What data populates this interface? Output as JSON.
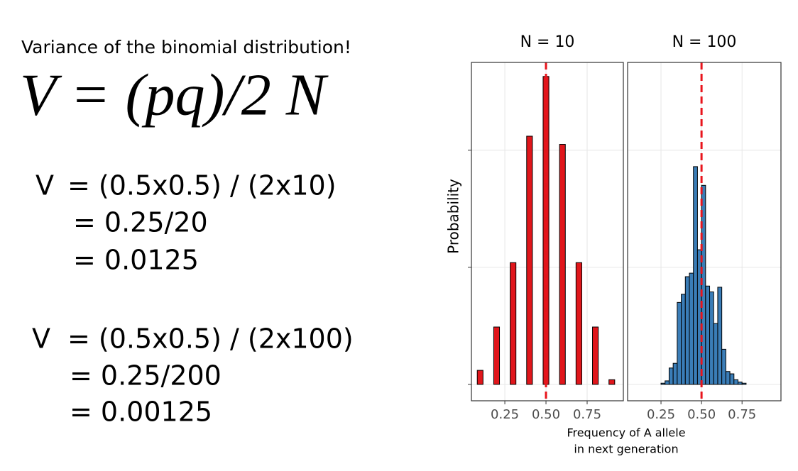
{
  "text": {
    "heading": "Variance of the binomial distribution!",
    "formula": "V = (pq)/2 N",
    "examples": [
      {
        "label": "V",
        "lines": [
          "= (0.5x0.5) / (2x10)",
          "= 0.25/20",
          "= 0.0125"
        ]
      },
      {
        "label": "V",
        "lines": [
          "= (0.5x0.5) / (2x100)",
          "= 0.25/200",
          "= 0.00125"
        ]
      }
    ]
  },
  "axes": {
    "y_label": "Probability",
    "x_label": [
      "Frequency of A allele",
      "in next generation"
    ]
  },
  "chart_data": [
    {
      "type": "bar",
      "title": "N = 10",
      "x": [
        0.1,
        0.2,
        0.3,
        0.4,
        0.5,
        0.6,
        0.7,
        0.8,
        0.9
      ],
      "values": [
        0.012,
        0.049,
        0.104,
        0.212,
        0.263,
        0.205,
        0.104,
        0.049,
        0.004
      ],
      "color": "#e0161b",
      "xlim": [
        0.047,
        0.97
      ],
      "ylim": [
        -0.014,
        0.275
      ],
      "xticks": [
        {
          "value": 0.25,
          "label": "0.25"
        },
        {
          "value": 0.5,
          "label": "0.50"
        },
        {
          "value": 0.75,
          "label": "0.75"
        }
      ],
      "yticks": [
        0,
        0.1,
        0.2
      ],
      "grid": true,
      "vline": {
        "value": 0.5,
        "color": "#e8141c"
      }
    },
    {
      "type": "histogram",
      "title": "N = 100",
      "bins": [
        0.1,
        0.125,
        0.15,
        0.175,
        0.2,
        0.225,
        0.25,
        0.275,
        0.3,
        0.325,
        0.35,
        0.375,
        0.4,
        0.425,
        0.45,
        0.475,
        0.5,
        0.525,
        0.55,
        0.575,
        0.6,
        0.625,
        0.65,
        0.675,
        0.7,
        0.725,
        0.75,
        0.775,
        0.8,
        0.825,
        0.85,
        0.875,
        0.9,
        0.925,
        0.95
      ],
      "values": [
        0,
        0,
        0,
        0,
        0,
        0,
        0.001,
        0.003,
        0.014,
        0.018,
        0.07,
        0.077,
        0.092,
        0.095,
        0.186,
        0.115,
        0.17,
        0.084,
        0.079,
        0.052,
        0.083,
        0.03,
        0.011,
        0.009,
        0.004,
        0.002,
        0.001,
        0,
        0,
        0,
        0,
        0,
        0,
        0
      ],
      "color": "#3a7db7",
      "xlim": [
        0.044,
        0.99
      ],
      "ylim": [
        -0.014,
        0.275
      ],
      "xticks": [
        {
          "value": 0.25,
          "label": "0.25"
        },
        {
          "value": 0.5,
          "label": "0.50"
        },
        {
          "value": 0.75,
          "label": "0.75"
        }
      ],
      "yticks": [
        0,
        0.1,
        0.2
      ],
      "grid": true,
      "vline": {
        "value": 0.5,
        "color": "#e8141c"
      }
    }
  ]
}
